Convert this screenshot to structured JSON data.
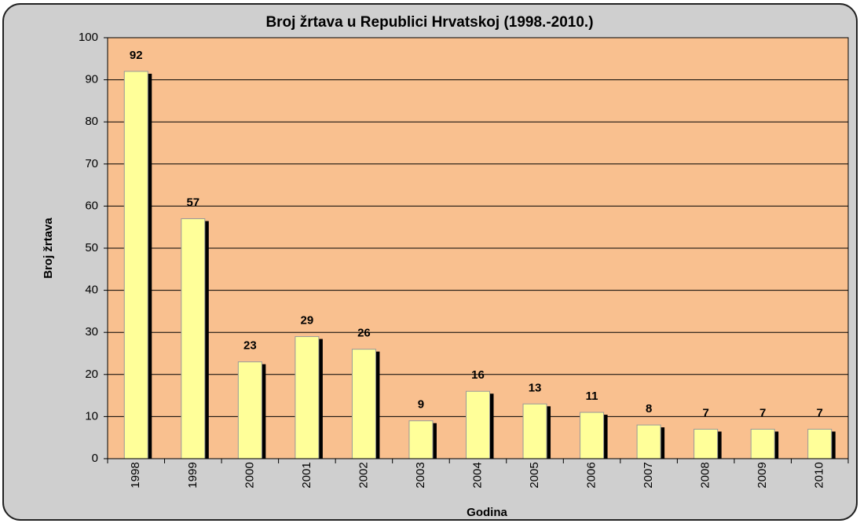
{
  "chart_data": {
    "type": "bar",
    "title": "Broj žrtava u Republici Hrvatskoj (1998.-2010.)",
    "x_label": "Godina",
    "y_label": "Broj žrtava",
    "categories": [
      "1998",
      "1999",
      "2000",
      "2001",
      "2002",
      "2003",
      "2004",
      "2005",
      "2006",
      "2007",
      "2008",
      "2009",
      "2010"
    ],
    "values": [
      92,
      57,
      23,
      29,
      26,
      9,
      16,
      13,
      11,
      8,
      7,
      7,
      7
    ],
    "color": "#ffff99",
    "plot_color": "#f9c08f",
    "ylim": [
      0,
      100
    ],
    "yticks": [
      0,
      10,
      20,
      30,
      40,
      50,
      60,
      70,
      80,
      90,
      100
    ],
    "grid": true
  }
}
